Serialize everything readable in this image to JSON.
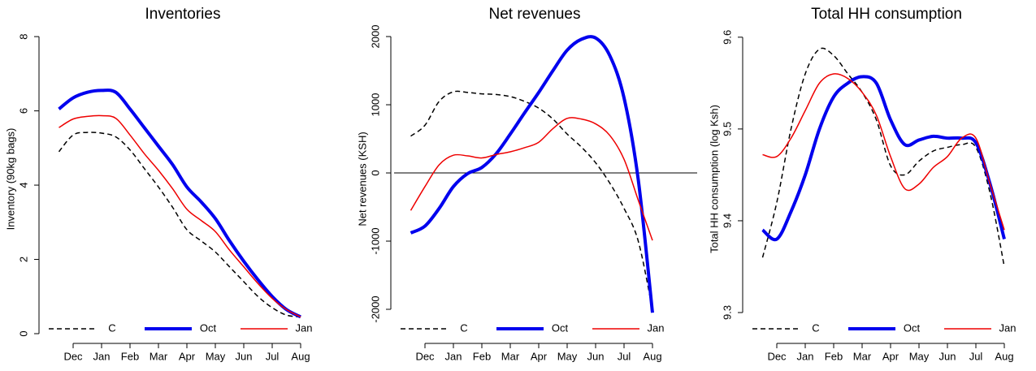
{
  "chart_data": [
    {
      "type": "line",
      "title": "Inventories",
      "ylabel": "Inventory (90kg bags)",
      "categories": [
        null,
        "Dec",
        null,
        "Jan",
        null,
        "Feb",
        null,
        "Mar",
        null,
        "Apr",
        null,
        "May",
        null,
        "Jun",
        null,
        "Jul",
        null,
        "Aug"
      ],
      "ylim": [
        0,
        8.33
      ],
      "yticks": [
        0,
        2,
        4,
        6,
        8
      ],
      "series": [
        {
          "name": "C",
          "color": "#000000",
          "width": 1.5,
          "dash": true,
          "values": [
            4.9,
            5.35,
            5.42,
            5.4,
            5.3,
            4.95,
            4.45,
            3.95,
            3.4,
            2.8,
            2.5,
            2.2,
            1.8,
            1.4,
            1.0,
            0.7,
            0.5,
            0.45
          ]
        },
        {
          "name": "Oct",
          "color": "#0000ee",
          "width": 4,
          "dash": false,
          "values": [
            6.05,
            6.35,
            6.5,
            6.55,
            6.5,
            6.05,
            5.55,
            5.05,
            4.55,
            3.95,
            3.55,
            3.1,
            2.5,
            1.95,
            1.45,
            1.0,
            0.65,
            0.45
          ]
        },
        {
          "name": "Jan",
          "color": "#ee0000",
          "width": 1.5,
          "dash": false,
          "values": [
            5.55,
            5.78,
            5.85,
            5.87,
            5.8,
            5.35,
            4.85,
            4.4,
            3.9,
            3.35,
            3.05,
            2.75,
            2.25,
            1.8,
            1.35,
            0.95,
            0.65,
            0.45
          ]
        }
      ]
    },
    {
      "type": "line",
      "title": "Net revenues",
      "ylabel": "Net revenues (KSH)",
      "categories": [
        null,
        "Dec",
        null,
        "Jan",
        null,
        "Feb",
        null,
        "Mar",
        null,
        "Apr",
        null,
        "May",
        null,
        "Jun",
        null,
        "Jul",
        null,
        "Aug"
      ],
      "ylim": [
        -2357,
        2179
      ],
      "yticks": [
        -2000,
        -1000,
        0,
        1000,
        2000
      ],
      "hline": 0,
      "series": [
        {
          "name": "C",
          "color": "#000000",
          "width": 1.5,
          "dash": true,
          "values": [
            540,
            700,
            1050,
            1190,
            1180,
            1160,
            1150,
            1120,
            1050,
            950,
            790,
            570,
            380,
            150,
            -150,
            -520,
            -1000,
            -2000
          ]
        },
        {
          "name": "Oct",
          "color": "#0000ee",
          "width": 4,
          "dash": false,
          "values": [
            -880,
            -780,
            -520,
            -200,
            -10,
            80,
            280,
            570,
            880,
            1180,
            1500,
            1800,
            1960,
            1980,
            1720,
            1100,
            -100,
            -2050
          ]
        },
        {
          "name": "Jan",
          "color": "#ee0000",
          "width": 1.5,
          "dash": false,
          "values": [
            -550,
            -200,
            120,
            260,
            250,
            220,
            270,
            310,
            370,
            450,
            650,
            800,
            790,
            720,
            550,
            200,
            -400,
            -990
          ]
        }
      ]
    },
    {
      "type": "line",
      "title": "Total HH consumption",
      "ylabel": "Total HH consumption (log Ksh)",
      "categories": [
        null,
        "Dec",
        null,
        "Jan",
        null,
        "Feb",
        null,
        "Mar",
        null,
        "Apr",
        null,
        "May",
        null,
        "Jun",
        null,
        "Jul",
        null,
        "Aug"
      ],
      "ylim": [
        9.277,
        9.614
      ],
      "yticks": [
        9.3,
        9.4,
        9.5,
        9.6
      ],
      "series": [
        {
          "name": "C",
          "color": "#000000",
          "width": 1.5,
          "dash": true,
          "values": [
            9.36,
            9.42,
            9.5,
            9.56,
            9.587,
            9.58,
            9.56,
            9.54,
            9.51,
            9.46,
            9.45,
            9.465,
            9.476,
            9.48,
            9.483,
            9.48,
            9.43,
            9.35
          ]
        },
        {
          "name": "Oct",
          "color": "#0000ee",
          "width": 4,
          "dash": false,
          "values": [
            9.39,
            9.38,
            9.41,
            9.45,
            9.5,
            9.535,
            9.55,
            9.557,
            9.55,
            9.51,
            9.483,
            9.488,
            9.492,
            9.49,
            9.49,
            9.485,
            9.44,
            9.38
          ]
        },
        {
          "name": "Jan",
          "color": "#ee0000",
          "width": 1.5,
          "dash": false,
          "values": [
            9.472,
            9.47,
            9.49,
            9.52,
            9.55,
            9.56,
            9.555,
            9.54,
            9.515,
            9.47,
            9.435,
            9.44,
            9.458,
            9.47,
            9.49,
            9.49,
            9.44,
            9.39
          ]
        }
      ]
    }
  ]
}
